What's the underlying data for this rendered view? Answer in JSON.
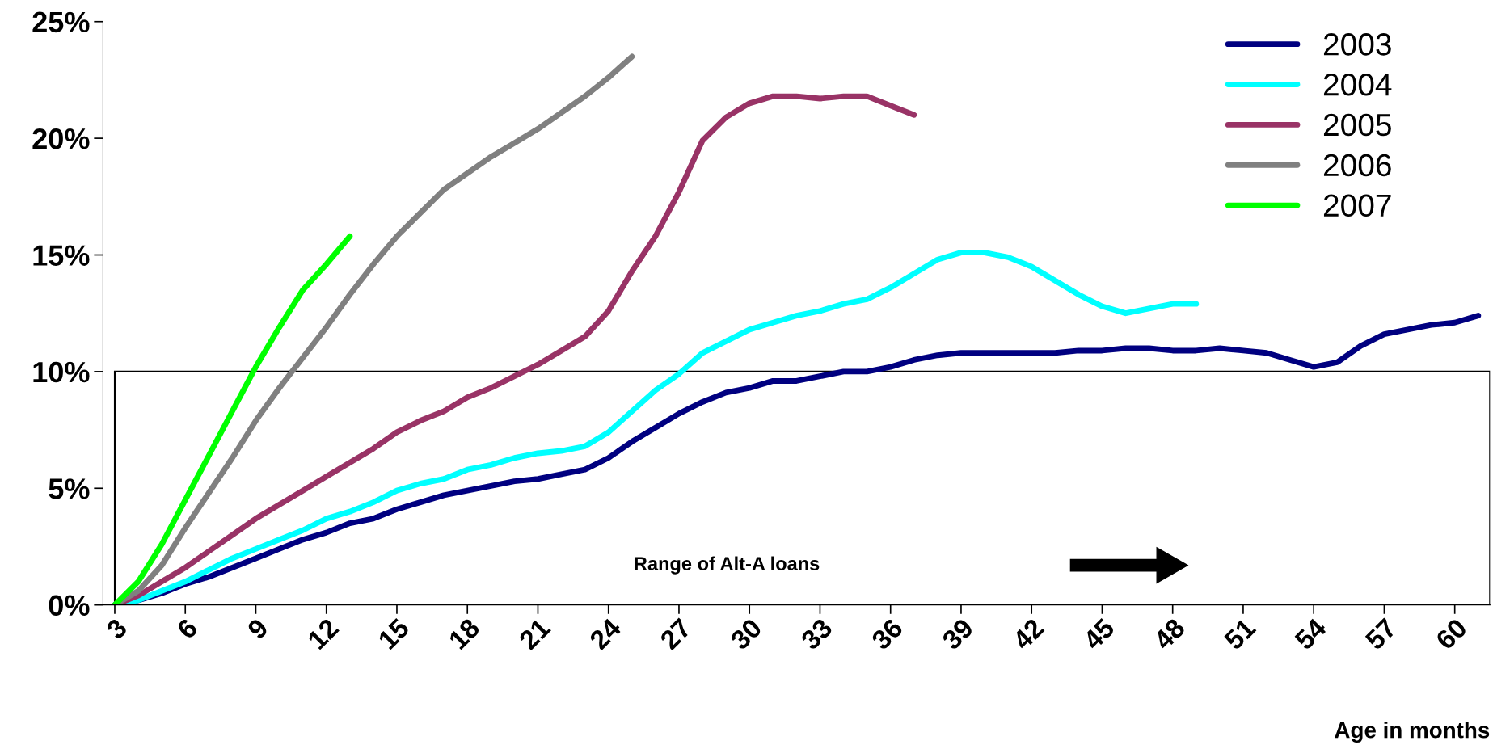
{
  "chart_data": {
    "type": "line",
    "xlabel": "Age in months",
    "x": [
      3,
      4,
      5,
      6,
      7,
      8,
      9,
      10,
      11,
      12,
      13,
      14,
      15,
      16,
      17,
      18,
      19,
      20,
      21,
      22,
      23,
      24,
      25,
      26,
      27,
      28,
      29,
      30,
      31,
      32,
      33,
      34,
      35,
      36,
      37,
      38,
      39,
      40,
      41,
      42,
      43,
      44,
      45,
      46,
      47,
      48,
      49,
      50,
      51,
      52,
      53,
      54,
      55,
      56,
      57,
      58,
      59,
      60,
      61
    ],
    "xlim": [
      2.5,
      61.5
    ],
    "xticks": [
      3,
      6,
      9,
      12,
      15,
      18,
      21,
      24,
      27,
      30,
      33,
      36,
      39,
      42,
      45,
      48,
      51,
      54,
      57,
      60
    ],
    "ylim": [
      0,
      25
    ],
    "yticks": [
      {
        "value": 0,
        "label": "0%"
      },
      {
        "value": 5,
        "label": "5%"
      },
      {
        "value": 10,
        "label": "10%"
      },
      {
        "value": 15,
        "label": "15%"
      },
      {
        "value": 20,
        "label": "20%"
      },
      {
        "value": 25,
        "label": "25%"
      }
    ],
    "grid": false,
    "legend": "top right",
    "marker": "none",
    "line_style": "solid",
    "series": [
      {
        "name": "2003",
        "color": "#000080",
        "values": [
          0,
          0.2,
          0.5,
          0.9,
          1.2,
          1.6,
          2.0,
          2.4,
          2.8,
          3.1,
          3.5,
          3.7,
          4.1,
          4.4,
          4.7,
          4.9,
          5.1,
          5.3,
          5.4,
          5.6,
          5.8,
          6.3,
          7.0,
          7.6,
          8.2,
          8.7,
          9.1,
          9.3,
          9.6,
          9.6,
          9.8,
          10.0,
          10.0,
          10.2,
          10.5,
          10.7,
          10.8,
          10.8,
          10.8,
          10.8,
          10.8,
          10.9,
          10.9,
          11.0,
          11.0,
          10.9,
          10.9,
          11.0,
          10.9,
          10.8,
          10.5,
          10.2,
          10.4,
          11.1,
          11.6,
          11.8,
          12.0,
          12.1,
          12.4
        ]
      },
      {
        "name": "2004",
        "color": "#00ffff",
        "values": [
          0,
          0.2,
          0.6,
          1.0,
          1.5,
          2.0,
          2.4,
          2.8,
          3.2,
          3.7,
          4.0,
          4.4,
          4.9,
          5.2,
          5.4,
          5.8,
          6.0,
          6.3,
          6.5,
          6.6,
          6.8,
          7.4,
          8.3,
          9.2,
          9.9,
          10.8,
          11.3,
          11.8,
          12.1,
          12.4,
          12.6,
          12.9,
          13.1,
          13.6,
          14.2,
          14.8,
          15.1,
          15.1,
          14.9,
          14.5,
          13.9,
          13.3,
          12.8,
          12.5,
          12.7,
          12.9,
          12.9,
          null,
          null,
          null,
          null,
          null,
          null,
          null,
          null,
          null,
          null,
          null,
          null
        ]
      },
      {
        "name": "2005",
        "color": "#993366",
        "values": [
          0,
          0.4,
          1.0,
          1.6,
          2.3,
          3.0,
          3.7,
          4.3,
          4.9,
          5.5,
          6.1,
          6.7,
          7.4,
          7.9,
          8.3,
          8.9,
          9.3,
          9.8,
          10.3,
          10.9,
          11.5,
          12.6,
          14.3,
          15.8,
          17.7,
          19.9,
          20.9,
          21.5,
          21.8,
          21.8,
          21.7,
          21.8,
          21.8,
          21.4,
          21.0,
          null,
          null,
          null,
          null,
          null,
          null,
          null,
          null,
          null,
          null,
          null,
          null,
          null,
          null,
          null,
          null,
          null,
          null,
          null,
          null,
          null,
          null,
          null,
          null
        ]
      },
      {
        "name": "2006",
        "color": "#808080",
        "values": [
          0,
          0.6,
          1.7,
          3.3,
          4.8,
          6.3,
          7.9,
          9.3,
          10.6,
          11.9,
          13.3,
          14.6,
          15.8,
          16.8,
          17.8,
          18.5,
          19.2,
          19.8,
          20.4,
          21.1,
          21.8,
          22.6,
          23.5,
          null,
          null,
          null,
          null,
          null,
          null,
          null,
          null,
          null,
          null,
          null,
          null,
          null,
          null,
          null,
          null,
          null,
          null,
          null,
          null,
          null,
          null,
          null,
          null,
          null,
          null,
          null,
          null,
          null,
          null,
          null,
          null,
          null,
          null,
          null,
          null
        ]
      },
      {
        "name": "2007",
        "color": "#00ff00",
        "values": [
          0,
          1.0,
          2.6,
          4.5,
          6.4,
          8.3,
          10.2,
          11.9,
          13.5,
          14.6,
          15.8,
          null,
          null,
          null,
          null,
          null,
          null,
          null,
          null,
          null,
          null,
          null,
          null,
          null,
          null,
          null,
          null,
          null,
          null,
          null,
          null,
          null,
          null,
          null,
          null,
          null,
          null,
          null,
          null,
          null,
          null,
          null,
          null,
          null,
          null,
          null,
          null,
          null,
          null,
          null,
          null,
          null,
          null,
          null,
          null,
          null,
          null,
          null,
          null
        ]
      }
    ],
    "bands": [
      {
        "axis": "y",
        "from": 0,
        "to": 10,
        "label": "Range of Alt-A loans",
        "color": "#000000"
      }
    ]
  }
}
